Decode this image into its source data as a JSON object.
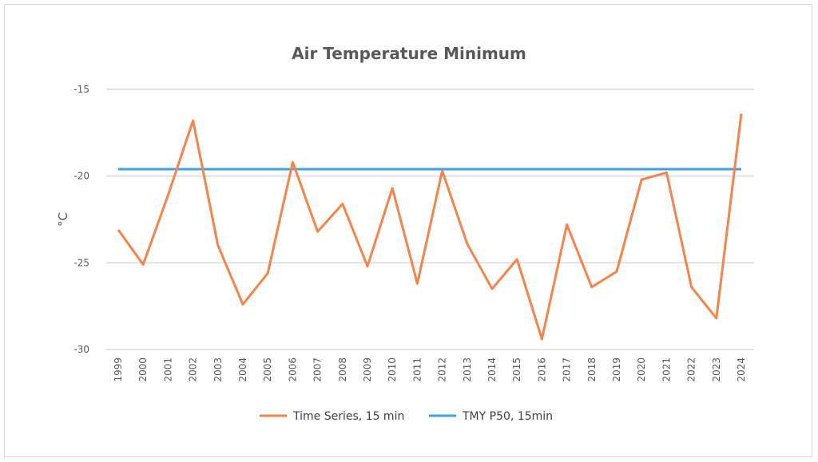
{
  "chart_data": {
    "type": "line",
    "title": "Air Temperature Minimum",
    "xlabel": "",
    "ylabel": "°C",
    "ylim": [
      -30,
      -15
    ],
    "yticks": [
      -15,
      -20,
      -25,
      -30
    ],
    "grid": true,
    "legend_position": "bottom",
    "categories": [
      "1999",
      "2000",
      "2001",
      "2002",
      "2003",
      "2004",
      "2005",
      "2006",
      "2007",
      "2008",
      "2009",
      "2010",
      "2011",
      "2012",
      "2013",
      "2014",
      "2015",
      "2016",
      "2017",
      "2018",
      "2019",
      "2020",
      "2021",
      "2022",
      "2023",
      "2024"
    ],
    "series": [
      {
        "name": "Time Series, 15 min",
        "color": "#f4844a",
        "values": [
          -23.1,
          -25.1,
          -21.1,
          -16.8,
          -24.0,
          -27.4,
          -25.6,
          -19.2,
          -23.2,
          -21.6,
          -25.2,
          -20.7,
          -26.2,
          -19.7,
          -23.9,
          -26.5,
          -24.8,
          -29.4,
          -22.8,
          -26.4,
          -25.5,
          -20.2,
          -19.8,
          -26.4,
          -28.2,
          -16.4
        ]
      },
      {
        "name": "TMY P50, 15min",
        "color": "#3ea2e4",
        "values": [
          -19.6,
          -19.6,
          -19.6,
          -19.6,
          -19.6,
          -19.6,
          -19.6,
          -19.6,
          -19.6,
          -19.6,
          -19.6,
          -19.6,
          -19.6,
          -19.6,
          -19.6,
          -19.6,
          -19.6,
          -19.6,
          -19.6,
          -19.6,
          -19.6,
          -19.6,
          -19.6,
          -19.6,
          -19.6,
          -19.6
        ]
      }
    ]
  }
}
